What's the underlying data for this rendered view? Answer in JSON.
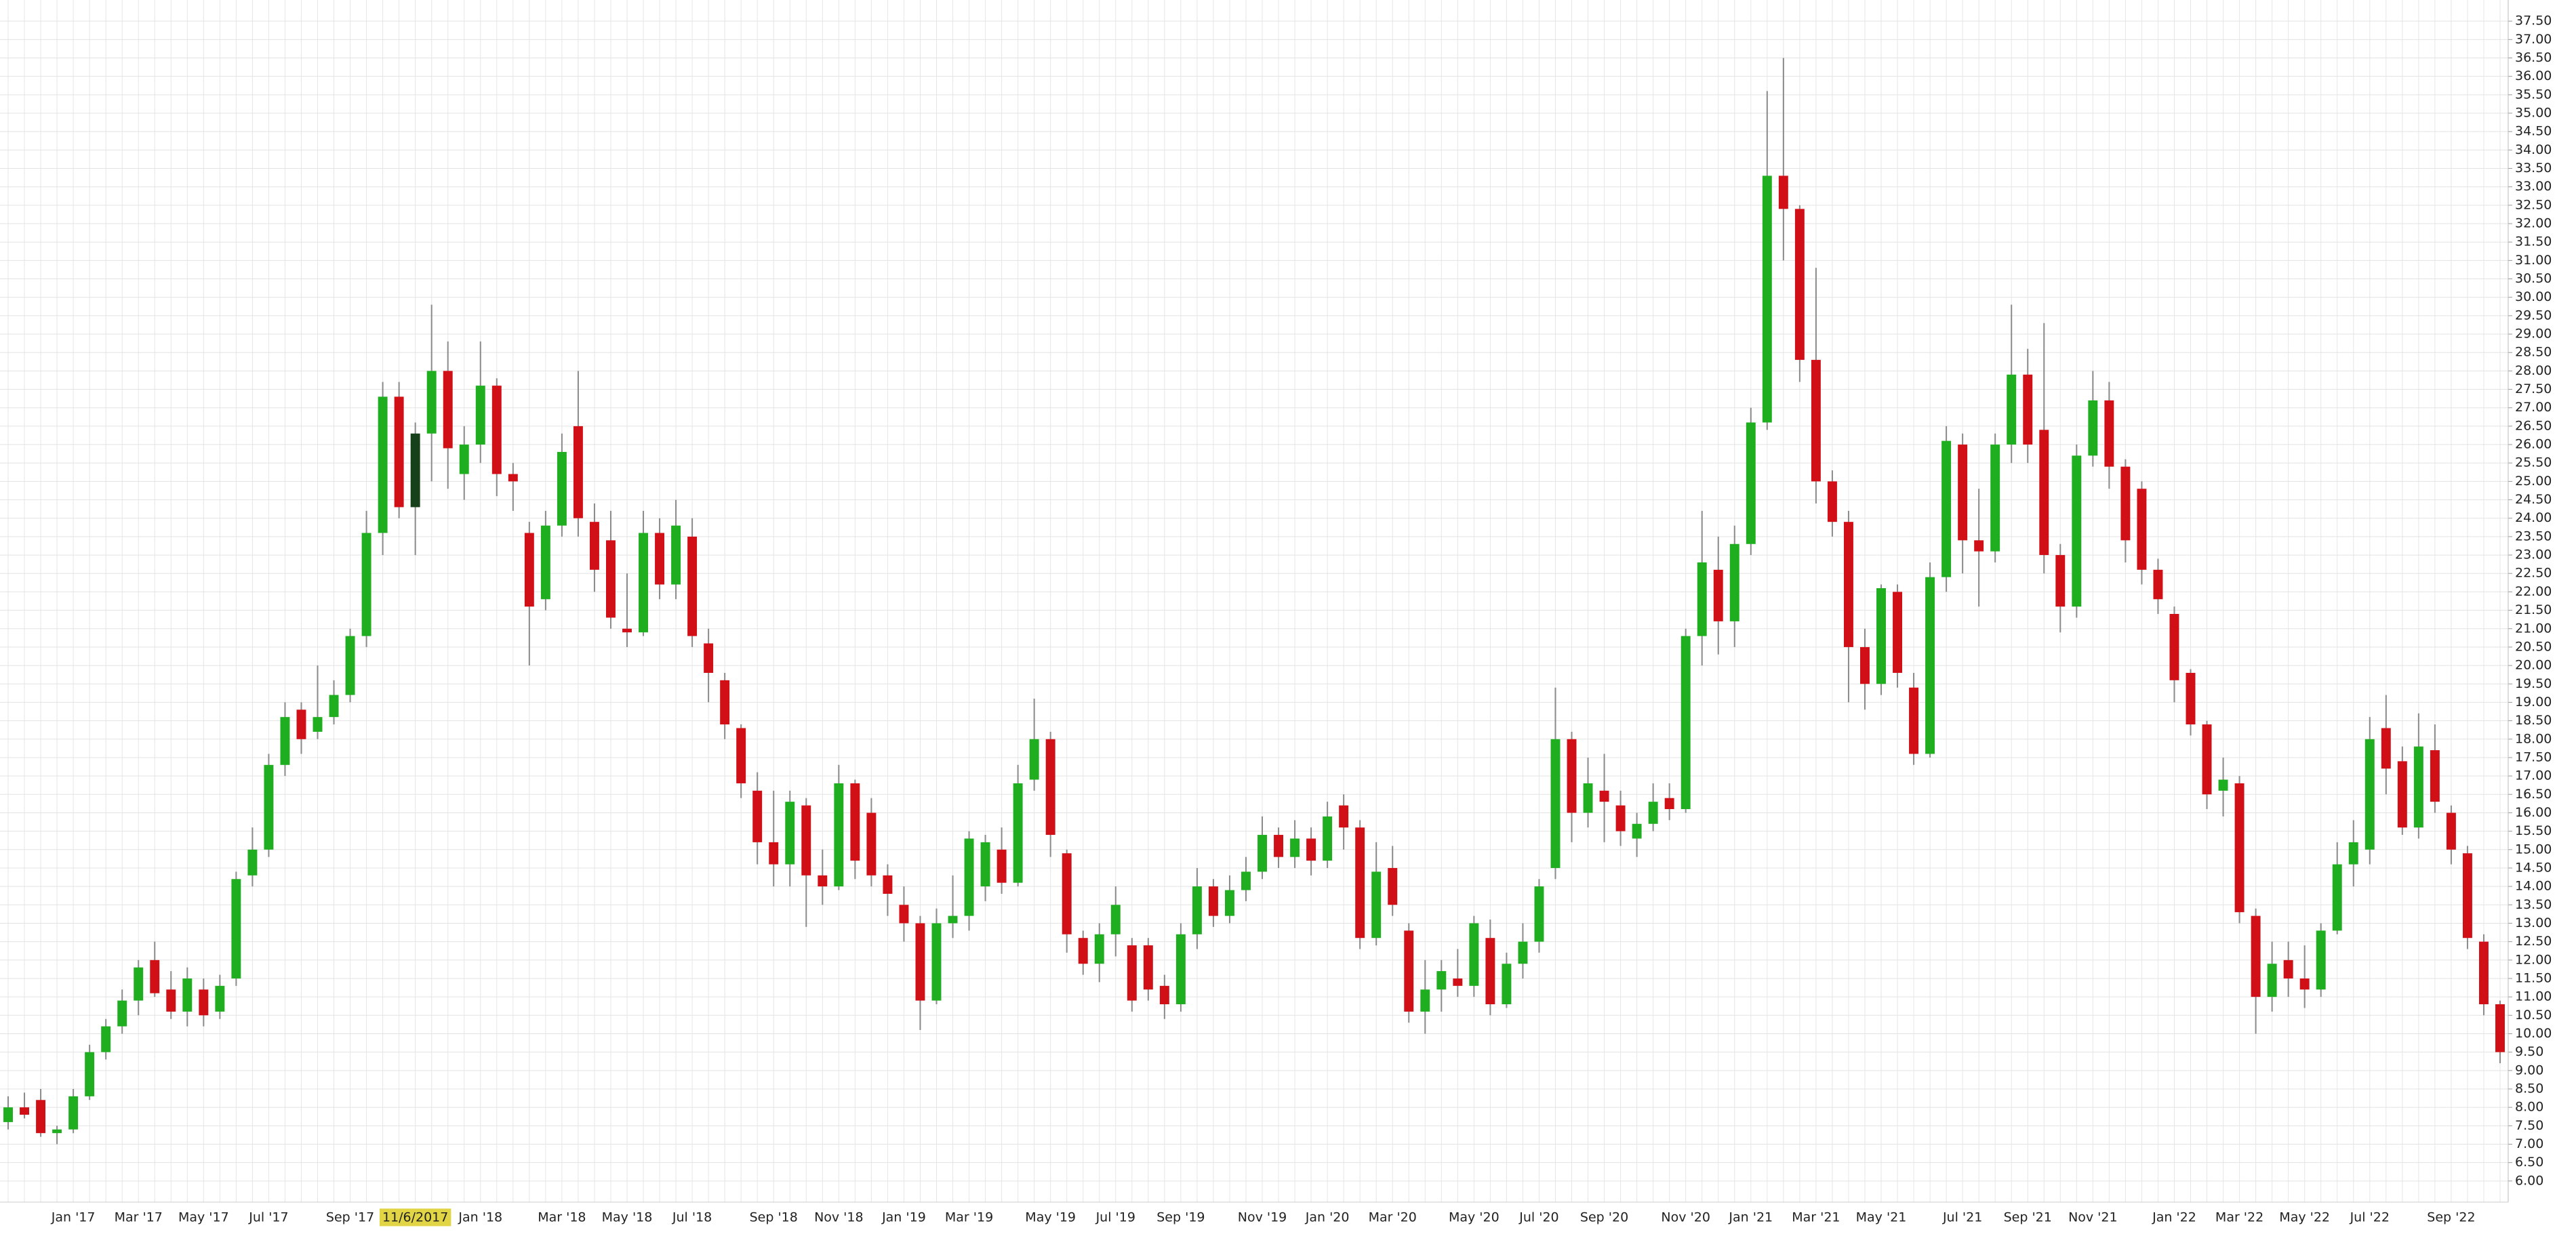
{
  "chart_data": {
    "type": "candlestick",
    "categories": [
      null,
      null,
      null,
      null,
      "Jan '17",
      null,
      null,
      null,
      "Mar '17",
      null,
      null,
      null,
      "May '17",
      null,
      null,
      null,
      "Jul '17",
      null,
      null,
      null,
      null,
      "Sep '17",
      null,
      null,
      null,
      "11/6/2017",
      null,
      null,
      null,
      "Jan '18",
      null,
      null,
      null,
      null,
      "Mar '18",
      null,
      null,
      null,
      "May '18",
      null,
      null,
      null,
      "Jul '18",
      null,
      null,
      null,
      null,
      "Sep '18",
      null,
      null,
      null,
      "Nov '18",
      null,
      null,
      null,
      "Jan '19",
      null,
      null,
      null,
      "Mar '19",
      null,
      null,
      null,
      null,
      "May '19",
      null,
      null,
      null,
      "Jul '19",
      null,
      null,
      null,
      "Sep '19",
      null,
      null,
      null,
      null,
      "Nov '19",
      null,
      null,
      null,
      "Jan '20",
      null,
      null,
      null,
      "Mar '20",
      null,
      null,
      null,
      null,
      "May '20",
      null,
      null,
      null,
      "Jul '20",
      null,
      null,
      null,
      "Sep '20",
      null,
      null,
      null,
      null,
      "Nov '20",
      null,
      null,
      null,
      "Jan '21",
      null,
      null,
      null,
      "Mar '21",
      null,
      null,
      null,
      "May '21",
      null,
      null,
      null,
      null,
      "Jul '21",
      null,
      null,
      null,
      "Sep '21",
      null,
      null,
      null,
      "Nov '21",
      null,
      null,
      null,
      null,
      "Jan '22",
      null,
      null,
      null,
      "Mar '22",
      null,
      null,
      null,
      "May '22",
      null,
      null,
      null,
      "Jul '22",
      null,
      null,
      null,
      null,
      "Sep '22",
      null,
      null,
      null
    ],
    "ohlc": [
      [
        7.6,
        8.3,
        7.4,
        8.0
      ],
      [
        8.0,
        8.4,
        7.7,
        7.8
      ],
      [
        8.2,
        8.5,
        7.2,
        7.3
      ],
      [
        7.3,
        7.5,
        7.0,
        7.4
      ],
      [
        7.4,
        8.5,
        7.3,
        8.3
      ],
      [
        8.3,
        9.7,
        8.2,
        9.5
      ],
      [
        9.5,
        10.4,
        9.3,
        10.2
      ],
      [
        10.2,
        11.2,
        10.0,
        10.9
      ],
      [
        10.9,
        12.0,
        10.5,
        11.8
      ],
      [
        12.0,
        12.5,
        11.0,
        11.1
      ],
      [
        11.2,
        11.7,
        10.4,
        10.6
      ],
      [
        10.6,
        11.8,
        10.2,
        11.5
      ],
      [
        11.2,
        11.5,
        10.2,
        10.5
      ],
      [
        10.6,
        11.6,
        10.4,
        11.3
      ],
      [
        11.5,
        14.4,
        11.3,
        14.2
      ],
      [
        14.3,
        15.6,
        14.0,
        15.0
      ],
      [
        15.0,
        17.6,
        14.8,
        17.3
      ],
      [
        17.3,
        19.0,
        17.0,
        18.6
      ],
      [
        18.8,
        19.0,
        17.6,
        18.0
      ],
      [
        18.2,
        20.0,
        18.0,
        18.6
      ],
      [
        18.6,
        19.6,
        18.4,
        19.2
      ],
      [
        19.2,
        21.0,
        19.0,
        20.8
      ],
      [
        20.8,
        24.2,
        20.5,
        23.6
      ],
      [
        23.6,
        27.7,
        23.0,
        27.3
      ],
      [
        27.3,
        27.7,
        24.0,
        24.3
      ],
      [
        24.3,
        26.6,
        23.0,
        26.3
      ],
      [
        26.3,
        29.8,
        25.0,
        28.0
      ],
      [
        28.0,
        28.8,
        24.8,
        25.9
      ],
      [
        25.2,
        26.5,
        24.5,
        26.0
      ],
      [
        26.0,
        28.8,
        25.5,
        27.6
      ],
      [
        27.6,
        27.8,
        24.6,
        25.2
      ],
      [
        25.2,
        25.5,
        24.2,
        25.0
      ],
      [
        23.6,
        23.9,
        20.0,
        21.6
      ],
      [
        21.8,
        24.2,
        21.5,
        23.8
      ],
      [
        23.8,
        26.3,
        23.5,
        25.8
      ],
      [
        26.5,
        28.0,
        23.5,
        24.0
      ],
      [
        23.9,
        24.4,
        22.0,
        22.6
      ],
      [
        23.4,
        24.2,
        21.0,
        21.3
      ],
      [
        21.0,
        22.5,
        20.5,
        20.9
      ],
      [
        20.9,
        24.2,
        20.8,
        23.6
      ],
      [
        23.6,
        24.0,
        21.8,
        22.2
      ],
      [
        22.2,
        24.5,
        21.8,
        23.8
      ],
      [
        23.5,
        24.0,
        20.5,
        20.8
      ],
      [
        20.6,
        21.0,
        19.0,
        19.8
      ],
      [
        19.6,
        19.8,
        18.0,
        18.4
      ],
      [
        18.3,
        18.4,
        16.4,
        16.8
      ],
      [
        16.6,
        17.1,
        14.6,
        15.2
      ],
      [
        15.2,
        16.6,
        14.0,
        14.6
      ],
      [
        14.6,
        16.6,
        14.0,
        16.3
      ],
      [
        16.2,
        16.4,
        12.9,
        14.3
      ],
      [
        14.3,
        15.0,
        13.5,
        14.0
      ],
      [
        14.0,
        17.3,
        13.9,
        16.8
      ],
      [
        16.8,
        16.9,
        14.2,
        14.7
      ],
      [
        16.0,
        16.4,
        14.0,
        14.3
      ],
      [
        14.3,
        14.6,
        13.2,
        13.8
      ],
      [
        13.5,
        14.0,
        12.5,
        13.0
      ],
      [
        13.0,
        13.2,
        10.1,
        10.9
      ],
      [
        10.9,
        13.4,
        10.8,
        13.0
      ],
      [
        13.0,
        14.3,
        12.6,
        13.2
      ],
      [
        13.2,
        15.5,
        12.8,
        15.3
      ],
      [
        14.0,
        15.4,
        13.6,
        15.2
      ],
      [
        15.0,
        15.6,
        13.8,
        14.1
      ],
      [
        14.1,
        17.3,
        14.0,
        16.8
      ],
      [
        16.9,
        19.1,
        16.6,
        18.0
      ],
      [
        18.0,
        18.2,
        14.8,
        15.4
      ],
      [
        14.9,
        15.0,
        12.2,
        12.7
      ],
      [
        12.6,
        12.8,
        11.6,
        11.9
      ],
      [
        11.9,
        13.0,
        11.4,
        12.7
      ],
      [
        12.7,
        14.0,
        12.1,
        13.5
      ],
      [
        12.4,
        12.6,
        10.6,
        10.9
      ],
      [
        12.4,
        12.6,
        10.9,
        11.2
      ],
      [
        11.3,
        11.6,
        10.4,
        10.8
      ],
      [
        10.8,
        13.0,
        10.6,
        12.7
      ],
      [
        12.7,
        14.5,
        12.3,
        14.0
      ],
      [
        14.0,
        14.2,
        12.9,
        13.2
      ],
      [
        13.2,
        14.3,
        13.0,
        13.9
      ],
      [
        13.9,
        14.8,
        13.6,
        14.4
      ],
      [
        14.4,
        15.9,
        14.2,
        15.4
      ],
      [
        15.4,
        15.6,
        14.5,
        14.8
      ],
      [
        14.8,
        15.8,
        14.5,
        15.3
      ],
      [
        15.3,
        15.6,
        14.3,
        14.7
      ],
      [
        14.7,
        16.3,
        14.5,
        15.9
      ],
      [
        16.2,
        16.5,
        15.0,
        15.6
      ],
      [
        15.6,
        15.8,
        12.3,
        12.6
      ],
      [
        12.6,
        15.2,
        12.4,
        14.4
      ],
      [
        14.5,
        15.1,
        13.2,
        13.5
      ],
      [
        12.8,
        13.0,
        10.3,
        10.6
      ],
      [
        10.6,
        12.0,
        10.0,
        11.2
      ],
      [
        11.2,
        12.0,
        10.6,
        11.7
      ],
      [
        11.5,
        12.3,
        11.0,
        11.3
      ],
      [
        11.3,
        13.2,
        11.0,
        13.0
      ],
      [
        12.6,
        13.1,
        10.5,
        10.8
      ],
      [
        10.8,
        12.2,
        10.7,
        11.9
      ],
      [
        11.9,
        13.0,
        11.5,
        12.5
      ],
      [
        12.5,
        14.2,
        12.2,
        14.0
      ],
      [
        14.5,
        19.4,
        14.2,
        18.0
      ],
      [
        18.0,
        18.2,
        15.2,
        16.0
      ],
      [
        16.0,
        17.5,
        15.6,
        16.8
      ],
      [
        16.6,
        17.6,
        15.2,
        16.3
      ],
      [
        16.2,
        16.6,
        15.1,
        15.5
      ],
      [
        15.3,
        16.0,
        14.8,
        15.7
      ],
      [
        15.7,
        16.8,
        15.5,
        16.3
      ],
      [
        16.4,
        16.8,
        15.8,
        16.1
      ],
      [
        16.1,
        21.0,
        16.0,
        20.8
      ],
      [
        20.8,
        24.2,
        20.0,
        22.8
      ],
      [
        22.6,
        23.5,
        20.3,
        21.2
      ],
      [
        21.2,
        23.8,
        20.5,
        23.3
      ],
      [
        23.3,
        27.0,
        23.0,
        26.6
      ],
      [
        26.6,
        35.6,
        26.4,
        33.3
      ],
      [
        33.3,
        36.5,
        31.0,
        32.4
      ],
      [
        32.4,
        32.5,
        27.7,
        28.3
      ],
      [
        28.3,
        30.8,
        24.4,
        25.0
      ],
      [
        25.0,
        25.3,
        23.5,
        23.9
      ],
      [
        23.9,
        24.2,
        19.0,
        20.5
      ],
      [
        20.5,
        21.0,
        18.8,
        19.5
      ],
      [
        19.5,
        22.2,
        19.2,
        22.1
      ],
      [
        22.0,
        22.2,
        19.4,
        19.8
      ],
      [
        19.4,
        19.8,
        17.3,
        17.6
      ],
      [
        17.6,
        22.8,
        17.5,
        22.4
      ],
      [
        22.4,
        26.5,
        22.0,
        26.1
      ],
      [
        26.0,
        26.3,
        22.5,
        23.4
      ],
      [
        23.4,
        24.8,
        21.6,
        23.1
      ],
      [
        23.1,
        26.3,
        22.8,
        26.0
      ],
      [
        26.0,
        29.8,
        25.5,
        27.9
      ],
      [
        27.9,
        28.6,
        25.5,
        26.0
      ],
      [
        26.4,
        29.3,
        22.5,
        23.0
      ],
      [
        23.0,
        23.3,
        20.9,
        21.6
      ],
      [
        21.6,
        26.0,
        21.3,
        25.7
      ],
      [
        25.7,
        28.0,
        25.4,
        27.2
      ],
      [
        27.2,
        27.7,
        24.8,
        25.4
      ],
      [
        25.4,
        25.6,
        22.8,
        23.4
      ],
      [
        24.8,
        25.0,
        22.2,
        22.6
      ],
      [
        22.6,
        22.9,
        21.4,
        21.8
      ],
      [
        21.4,
        21.6,
        19.0,
        19.6
      ],
      [
        19.8,
        19.9,
        18.1,
        18.4
      ],
      [
        18.4,
        18.5,
        16.1,
        16.5
      ],
      [
        16.6,
        17.5,
        15.9,
        16.9
      ],
      [
        16.8,
        17.0,
        13.0,
        13.3
      ],
      [
        13.2,
        13.4,
        10.0,
        11.0
      ],
      [
        11.0,
        12.5,
        10.6,
        11.9
      ],
      [
        12.0,
        12.5,
        11.0,
        11.5
      ],
      [
        11.5,
        12.4,
        10.7,
        11.2
      ],
      [
        11.2,
        13.0,
        11.0,
        12.8
      ],
      [
        12.8,
        15.2,
        12.7,
        14.6
      ],
      [
        14.6,
        15.8,
        14.0,
        15.2
      ],
      [
        15.0,
        18.6,
        14.6,
        18.0
      ],
      [
        18.3,
        19.2,
        16.5,
        17.2
      ],
      [
        17.4,
        17.8,
        15.4,
        15.6
      ],
      [
        15.6,
        18.7,
        15.3,
        17.8
      ],
      [
        17.7,
        18.4,
        16.0,
        16.3
      ],
      [
        16.0,
        16.2,
        14.6,
        15.0
      ],
      [
        14.9,
        15.1,
        12.3,
        12.6
      ],
      [
        12.5,
        12.7,
        10.5,
        10.8
      ],
      [
        10.8,
        10.9,
        9.2,
        9.5
      ]
    ],
    "up_color": "#1fae1f",
    "down_color": "#d10f16",
    "wick_color": "#8a8a8a",
    "highlight_index": 25,
    "highlight_candle_color": "#16401a",
    "highlight_label_color": "#e2d545",
    "ylim": [
      5.5,
      38
    ],
    "yticks": [
      {
        "value": 6,
        "label": "6.00"
      },
      {
        "value": 6.5,
        "label": "6.50"
      },
      {
        "value": 7,
        "label": "7.00"
      },
      {
        "value": 7.5,
        "label": "7.50"
      },
      {
        "value": 8,
        "label": "8.00"
      },
      {
        "value": 8.5,
        "label": "8.50"
      },
      {
        "value": 9,
        "label": "9.00"
      },
      {
        "value": 9.5,
        "label": "9.50"
      },
      {
        "value": 10,
        "label": "10.00"
      },
      {
        "value": 10.5,
        "label": "10.50"
      },
      {
        "value": 11,
        "label": "11.00"
      },
      {
        "value": 11.5,
        "label": "11.50"
      },
      {
        "value": 12,
        "label": "12.00"
      },
      {
        "value": 12.5,
        "label": "12.50"
      },
      {
        "value": 13,
        "label": "13.00"
      },
      {
        "value": 13.5,
        "label": "13.50"
      },
      {
        "value": 14,
        "label": "14.00"
      },
      {
        "value": 14.5,
        "label": "14.50"
      },
      {
        "value": 15,
        "label": "15.00"
      },
      {
        "value": 15.5,
        "label": "15.50"
      },
      {
        "value": 16,
        "label": "16.00"
      },
      {
        "value": 16.5,
        "label": "16.50"
      },
      {
        "value": 17,
        "label": "17.00"
      },
      {
        "value": 17.5,
        "label": "17.50"
      },
      {
        "value": 18,
        "label": "18.00"
      },
      {
        "value": 18.5,
        "label": "18.50"
      },
      {
        "value": 19,
        "label": "19.00"
      },
      {
        "value": 19.5,
        "label": "19.50"
      },
      {
        "value": 20,
        "label": "20.00"
      },
      {
        "value": 20.5,
        "label": "20.50"
      },
      {
        "value": 21,
        "label": "21.00"
      },
      {
        "value": 21.5,
        "label": "21.50"
      },
      {
        "value": 22,
        "label": "22.00"
      },
      {
        "value": 22.5,
        "label": "22.50"
      },
      {
        "value": 23,
        "label": "23.00"
      },
      {
        "value": 23.5,
        "label": "23.50"
      },
      {
        "value": 24,
        "label": "24.00"
      },
      {
        "value": 24.5,
        "label": "24.50"
      },
      {
        "value": 25,
        "label": "25.00"
      },
      {
        "value": 25.5,
        "label": "25.50"
      },
      {
        "value": 26,
        "label": "26.00"
      },
      {
        "value": 26.5,
        "label": "26.50"
      },
      {
        "value": 27,
        "label": "27.00"
      },
      {
        "value": 27.5,
        "label": "27.50"
      },
      {
        "value": 28,
        "label": "28.00"
      },
      {
        "value": 28.5,
        "label": "28.50"
      },
      {
        "value": 29,
        "label": "29.00"
      },
      {
        "value": 29.5,
        "label": "29.50"
      },
      {
        "value": 30,
        "label": "30.00"
      },
      {
        "value": 30.5,
        "label": "30.50"
      },
      {
        "value": 31,
        "label": "31.00"
      },
      {
        "value": 31.5,
        "label": "31.50"
      },
      {
        "value": 32,
        "label": "32.00"
      },
      {
        "value": 32.5,
        "label": "32.50"
      },
      {
        "value": 33,
        "label": "33.00"
      },
      {
        "value": 33.5,
        "label": "33.50"
      },
      {
        "value": 34,
        "label": "34.00"
      },
      {
        "value": 34.5,
        "label": "34.50"
      },
      {
        "value": 35,
        "label": "35.00"
      },
      {
        "value": 35.5,
        "label": "35.50"
      },
      {
        "value": 36,
        "label": "36.00"
      },
      {
        "value": 36.5,
        "label": "36.50"
      },
      {
        "value": 37,
        "label": "37.00"
      },
      {
        "value": 37.5,
        "label": "37.50"
      }
    ],
    "grid": true
  }
}
